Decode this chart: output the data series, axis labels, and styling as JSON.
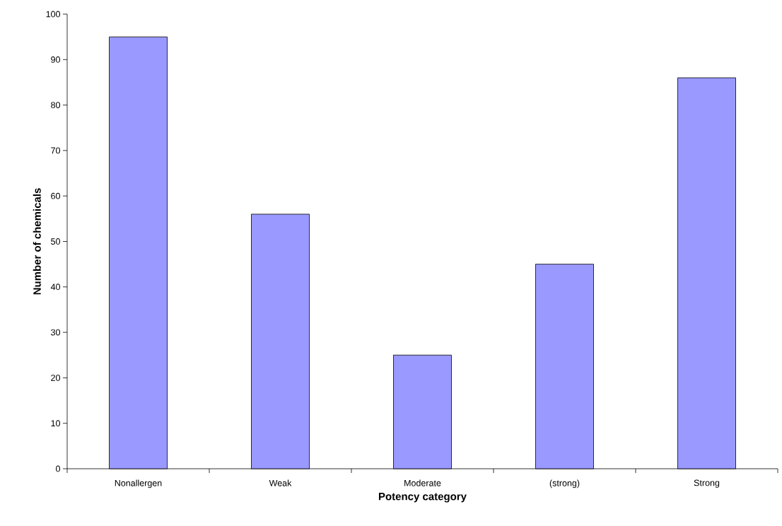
{
  "chart_data": {
    "type": "bar",
    "xlabel": "Potency category",
    "ylabel": "Number of chemicals",
    "categories": [
      "Nonallergen",
      "Weak",
      "Moderate",
      "(strong)",
      "Strong"
    ],
    "values": [
      95,
      56,
      25,
      45,
      86
    ],
    "color": "#9999ff",
    "ylim": [
      0,
      100
    ],
    "yticks": [
      0,
      10,
      20,
      30,
      40,
      50,
      60,
      70,
      80,
      90,
      100
    ],
    "grid": false
  }
}
